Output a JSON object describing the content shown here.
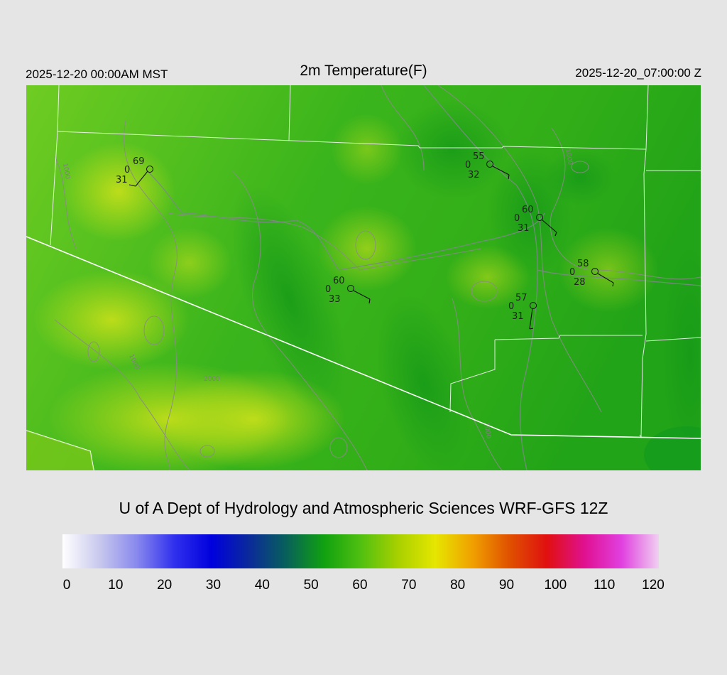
{
  "header": {
    "local_time": "2025-12-20 00:00AM MST",
    "title": "2m Temperature(F)",
    "utc_time": "2025-12-20_07:00:00 Z"
  },
  "credit": "U of A Dept of Hydrology and Atmospheric Sciences WRF-GFS 12Z",
  "contour_labels": [
    "1000",
    "1000",
    "1000",
    "2000",
    "1000"
  ],
  "stations": [
    {
      "temp": "69",
      "calm": "0",
      "dew": "31",
      "wind_dir": "SW"
    },
    {
      "temp": "55",
      "calm": "0",
      "dew": "32",
      "wind_dir": "SE"
    },
    {
      "temp": "60",
      "calm": "0",
      "dew": "31",
      "wind_dir": "SE"
    },
    {
      "temp": "60",
      "calm": "0",
      "dew": "33",
      "wind_dir": "SE"
    },
    {
      "temp": "58",
      "calm": "0",
      "dew": "28",
      "wind_dir": "SE"
    },
    {
      "temp": "57",
      "calm": "0",
      "dew": "31",
      "wind_dir": "S"
    }
  ],
  "colorbar": {
    "min": 0,
    "max": 120,
    "ticks": [
      "0",
      "10",
      "20",
      "30",
      "40",
      "50",
      "60",
      "70",
      "80",
      "90",
      "100",
      "110",
      "120"
    ],
    "colors": [
      "#ffffff",
      "#c8c8ee",
      "#8888ee",
      "#3030ee",
      "#0000dd",
      "#0a2a9a",
      "#08605a",
      "#10a010",
      "#50c010",
      "#a8d000",
      "#e6e600",
      "#f0a000",
      "#e05000",
      "#e01010",
      "#e01090",
      "#e040e0",
      "#f0d0f0"
    ]
  },
  "accent_colors": {
    "background": "#e5e5e5",
    "field_green": "#3db81a",
    "border_white": "#ffffff",
    "contour_gray": "#8a8a8a"
  }
}
